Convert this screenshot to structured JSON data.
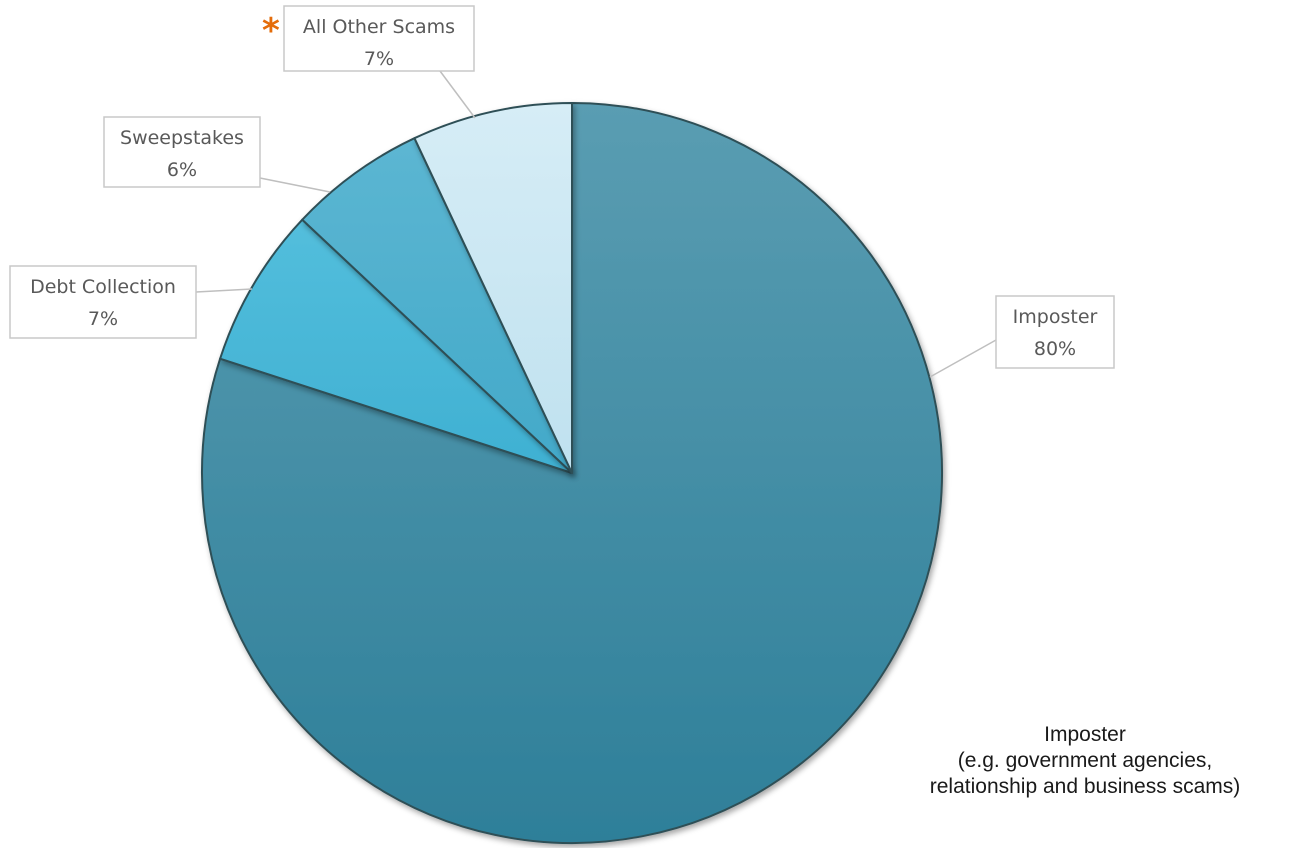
{
  "chart_data": {
    "type": "pie",
    "start_angle_deg": 0,
    "direction": "clockwise",
    "slices": [
      {
        "label": "Imposter",
        "value": 80,
        "display": "80%",
        "color": "#3A8DA8",
        "callout_side": "right",
        "flag": ""
      },
      {
        "label": "Debt Collection",
        "value": 7,
        "display": "7%",
        "color": "#47B8D8",
        "callout_side": "left",
        "flag": ""
      },
      {
        "label": "Sweepstakes",
        "value": 6,
        "display": "6%",
        "color": "#4DB0CF",
        "callout_side": "left",
        "flag": ""
      },
      {
        "label": "All Other Scams",
        "value": 7,
        "display": "7%",
        "color": "#C8E6F2",
        "callout_side": "top",
        "flag": "*"
      }
    ]
  },
  "note": {
    "lines": [
      "Imposter",
      "(e.g. government agencies,",
      "relationship and business scams)"
    ]
  }
}
